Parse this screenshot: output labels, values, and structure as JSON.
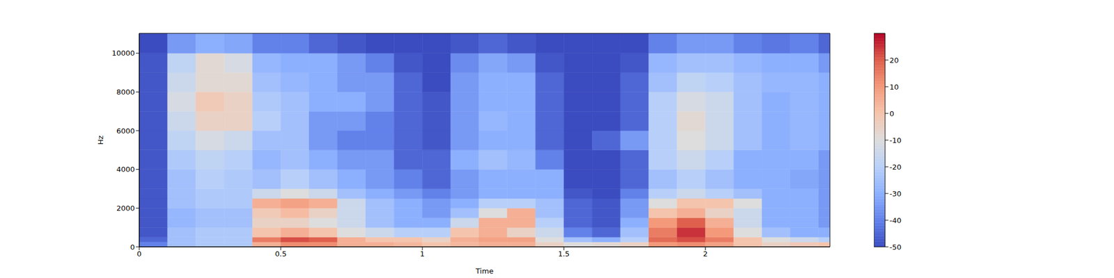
{
  "chart_data": {
    "type": "heatmap",
    "x_label": "Time",
    "y_label": "Hz",
    "xlim": [
      0,
      2.44
    ],
    "xticks": [
      0,
      0.5,
      1,
      1.5,
      2
    ],
    "ylim": [
      0,
      11025
    ],
    "yticks": [
      0,
      2000,
      4000,
      6000,
      8000,
      10000
    ],
    "time_edges": [
      0,
      0.1,
      0.2,
      0.3,
      0.4,
      0.5,
      0.6,
      0.7,
      0.8,
      0.9,
      1.0,
      1.1,
      1.2,
      1.3,
      1.4,
      1.5,
      1.6,
      1.7,
      1.8,
      1.9,
      2.0,
      2.1,
      2.2,
      2.3,
      2.4,
      2.44
    ],
    "freq_edges": [
      0,
      250,
      500,
      1000,
      1500,
      2000,
      2500,
      3000,
      4000,
      5000,
      6000,
      7000,
      8000,
      9000,
      10000,
      11025
    ],
    "cells": [
      [
        -40,
        -25,
        -22,
        -22,
        5,
        12,
        12,
        5,
        5,
        3,
        0,
        3,
        5,
        5,
        -5,
        -10,
        -8,
        -5,
        10,
        12,
        8,
        0,
        -5,
        -2,
        0
      ],
      [
        -45,
        -25,
        -22,
        -22,
        15,
        22,
        20,
        5,
        0,
        0,
        -5,
        5,
        8,
        8,
        -10,
        -25,
        -30,
        -20,
        18,
        22,
        15,
        0,
        -10,
        -15,
        -20
      ],
      [
        -48,
        -25,
        -22,
        -22,
        0,
        5,
        0,
        -10,
        -15,
        -20,
        -20,
        0,
        5,
        -5,
        -15,
        -40,
        -45,
        -25,
        15,
        25,
        10,
        -10,
        -25,
        -30,
        -30
      ],
      [
        -48,
        -28,
        -25,
        -25,
        -5,
        -5,
        -10,
        -15,
        -25,
        -30,
        -30,
        -15,
        5,
        5,
        -20,
        -45,
        -48,
        -30,
        10,
        20,
        5,
        -15,
        -30,
        -30,
        -35
      ],
      [
        -48,
        -28,
        -25,
        -25,
        -2,
        2,
        -5,
        -15,
        -25,
        -30,
        -35,
        -25,
        -10,
        5,
        -25,
        -45,
        -48,
        -35,
        0,
        5,
        -5,
        -15,
        -30,
        -30,
        -35
      ],
      [
        -48,
        -25,
        -22,
        -22,
        5,
        8,
        5,
        -15,
        -25,
        -30,
        -35,
        -30,
        -20,
        -20,
        -25,
        -45,
        -48,
        -35,
        -10,
        0,
        0,
        -10,
        -30,
        -30,
        -35
      ],
      [
        -48,
        -25,
        -22,
        -22,
        -15,
        -10,
        -15,
        -25,
        -30,
        -35,
        -40,
        -35,
        -30,
        -30,
        -30,
        -48,
        -50,
        -40,
        -20,
        -15,
        -20,
        -25,
        -30,
        -30,
        -35
      ],
      [
        -48,
        -25,
        -20,
        -22,
        -25,
        -20,
        -25,
        -30,
        -35,
        -40,
        -45,
        -35,
        -30,
        -30,
        -30,
        -50,
        -50,
        -45,
        -25,
        -20,
        -25,
        -30,
        -30,
        -32,
        -35
      ],
      [
        -48,
        -22,
        -18,
        -20,
        -28,
        -25,
        -30,
        -35,
        -35,
        -45,
        -45,
        -30,
        -25,
        -28,
        -40,
        -50,
        -50,
        -45,
        -20,
        -15,
        -20,
        -30,
        -30,
        -30,
        -35
      ],
      [
        -48,
        -18,
        -12,
        -15,
        -25,
        -25,
        -35,
        -40,
        -40,
        -45,
        -48,
        -35,
        -30,
        -30,
        -45,
        -50,
        -45,
        -35,
        -20,
        -10,
        -15,
        -25,
        -30,
        -28,
        -30
      ],
      [
        -48,
        -15,
        -5,
        -5,
        -20,
        -25,
        -35,
        -35,
        -40,
        -45,
        -48,
        -35,
        -28,
        -30,
        -45,
        -50,
        -50,
        -45,
        -20,
        -8,
        -15,
        -25,
        -30,
        -28,
        -30
      ],
      [
        -48,
        -12,
        -2,
        -5,
        -22,
        -25,
        -30,
        -30,
        -35,
        -45,
        -48,
        -35,
        -30,
        -30,
        -45,
        -50,
        -50,
        -45,
        -20,
        -12,
        -15,
        -25,
        -30,
        -28,
        -30
      ],
      [
        -48,
        -15,
        -8,
        -8,
        -25,
        -28,
        -30,
        -35,
        -35,
        -45,
        -50,
        -35,
        -30,
        -30,
        -45,
        -50,
        -50,
        -45,
        -25,
        -18,
        -20,
        -25,
        -28,
        -28,
        -30
      ],
      [
        -48,
        -18,
        -8,
        -12,
        -28,
        -30,
        -30,
        -35,
        -40,
        -48,
        -50,
        -38,
        -32,
        -35,
        -48,
        -50,
        -50,
        -48,
        -28,
        -25,
        -25,
        -28,
        -30,
        -30,
        -35
      ],
      [
        -50,
        -35,
        -30,
        -32,
        -40,
        -40,
        -45,
        -48,
        -50,
        -50,
        -50,
        -48,
        -45,
        -48,
        -50,
        -50,
        -50,
        -50,
        -40,
        -35,
        -35,
        -40,
        -42,
        -40,
        -45
      ]
    ],
    "colorbar": {
      "lim": [
        -50,
        30
      ],
      "ticks": [
        -50,
        -40,
        -30,
        -20,
        -10,
        0,
        10,
        20
      ]
    }
  }
}
